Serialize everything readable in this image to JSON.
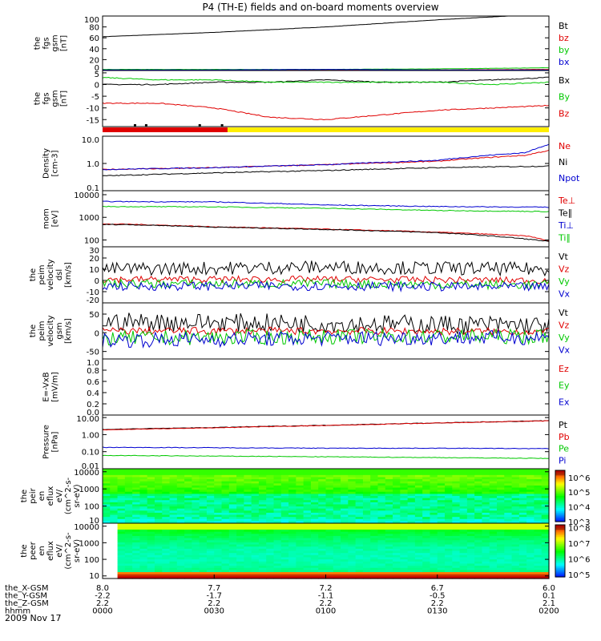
{
  "title": "P4 (TH-E) fields and on-board moments overview",
  "date": "2009 Nov 17",
  "colors": {
    "black": "#000000",
    "red": "#e00000",
    "green": "#00c800",
    "blue": "#0000d0"
  },
  "chart_data": [
    {
      "id": "p1",
      "type": "line",
      "ylabel": [
        "the",
        "fgs",
        "gsm",
        "[nT]"
      ],
      "ylim": [
        0,
        100
      ],
      "yticks": [
        "100",
        "80",
        "60",
        "40",
        "20",
        "0"
      ],
      "ytick_values": [
        100,
        80,
        60,
        40,
        20,
        0
      ],
      "series": [
        {
          "name": "Bt",
          "color": "#000000",
          "x": [
            0,
            0.5,
            1,
            1.5,
            2
          ],
          "y": [
            62,
            70,
            80,
            93,
            104
          ]
        },
        {
          "name": "bz",
          "color": "#e00000",
          "x": [
            0,
            0.5,
            1,
            1.5,
            2
          ],
          "y": [
            1,
            1,
            1,
            1,
            2
          ]
        },
        {
          "name": "by",
          "color": "#00c800",
          "x": [
            0,
            0.5,
            1,
            1.5,
            2
          ],
          "y": [
            2,
            2,
            2,
            3,
            5
          ]
        },
        {
          "name": "bx",
          "color": "#0000d0",
          "x": [
            0,
            0.5,
            1,
            1.5,
            2
          ],
          "y": [
            1,
            1,
            2,
            1,
            1
          ]
        }
      ]
    },
    {
      "id": "p2",
      "type": "line",
      "ylabel": [
        "the",
        "fgs",
        "gsm",
        "[nT]"
      ],
      "ylim": [
        -18,
        6
      ],
      "yticks": [
        "5",
        "0",
        "-5",
        "-10",
        "-15"
      ],
      "ytick_values": [
        5,
        0,
        -5,
        -10,
        -15
      ],
      "series": [
        {
          "name": "Bx",
          "color": "#000000",
          "x": [
            0,
            0.25,
            0.5,
            0.75,
            1,
            1.25,
            1.5,
            1.75,
            2
          ],
          "y": [
            0,
            0,
            1,
            1,
            2,
            1,
            1,
            2,
            3
          ]
        },
        {
          "name": "By",
          "color": "#00c800",
          "x": [
            0,
            0.25,
            0.5,
            0.75,
            1,
            1.25,
            1.5,
            1.75,
            2
          ],
          "y": [
            3,
            2,
            2,
            1,
            1,
            1,
            1,
            0,
            1
          ]
        },
        {
          "name": "Bz",
          "color": "#e00000",
          "x": [
            0,
            0.25,
            0.5,
            0.75,
            1,
            1.25,
            1.5,
            1.75,
            2
          ],
          "y": [
            -8,
            -8,
            -10,
            -14,
            -15,
            -13,
            -11,
            -10,
            -9
          ]
        }
      ]
    },
    {
      "id": "p3",
      "type": "line",
      "scale": "log",
      "ylabel": [
        "Density",
        "[cm-3]"
      ],
      "ylim": [
        0.1,
        10
      ],
      "yticks": [
        "10.0",
        "1.0",
        "0.1"
      ],
      "ytick_values": [
        10,
        1,
        0.1
      ],
      "series": [
        {
          "name": "Ne",
          "color": "#e00000",
          "x": [
            0,
            0.5,
            1,
            1.5,
            1.9,
            2
          ],
          "y": [
            0.6,
            0.7,
            0.9,
            1.2,
            2.0,
            3.0
          ]
        },
        {
          "name": "Ni",
          "color": "#000000",
          "x": [
            0,
            0.5,
            1,
            1.5,
            2
          ],
          "y": [
            0.35,
            0.45,
            0.55,
            0.7,
            0.8
          ]
        },
        {
          "name": "Npot",
          "color": "#0000d0",
          "x": [
            0,
            0.5,
            1,
            1.5,
            1.9,
            2
          ],
          "y": [
            0.6,
            0.7,
            0.9,
            1.3,
            2.5,
            5.0
          ]
        }
      ]
    },
    {
      "id": "p4",
      "type": "line",
      "scale": "log",
      "ylabel": [
        "mom",
        "[eV]"
      ],
      "ylim": [
        50,
        15000
      ],
      "yticks": [
        "10000",
        "1000",
        "100"
      ],
      "ytick_values": [
        10000,
        1000,
        100
      ],
      "series": [
        {
          "name": "Te⊥",
          "color": "#e00000",
          "x": [
            0.1,
            0.5,
            1,
            1.5,
            1.9,
            2
          ],
          "y": [
            500,
            380,
            300,
            220,
            150,
            90
          ]
        },
        {
          "name": "Te∥",
          "color": "#000000",
          "x": [
            0.1,
            0.5,
            1,
            1.5,
            2
          ],
          "y": [
            480,
            370,
            290,
            210,
            85
          ]
        },
        {
          "name": "Ti⊥",
          "color": "#0000d0",
          "x": [
            0,
            0.5,
            1,
            1.5,
            2
          ],
          "y": [
            5000,
            4800,
            3500,
            3000,
            2800
          ]
        },
        {
          "name": "Ti∥",
          "color": "#00c800",
          "x": [
            0,
            0.5,
            1,
            1.5,
            2
          ],
          "y": [
            3000,
            2900,
            2500,
            2000,
            1800
          ]
        }
      ]
    },
    {
      "id": "p5",
      "type": "line",
      "ylabel": [
        "the",
        "peim",
        "velocity",
        "dsl",
        "[km/s]"
      ],
      "ylim": [
        -20,
        30
      ],
      "yticks": [
        "30",
        "20",
        "10",
        "0",
        "-10",
        "-20"
      ],
      "ytick_values": [
        30,
        20,
        10,
        0,
        -10,
        -20
      ],
      "series": [
        {
          "name": "Vt",
          "color": "#000000",
          "x": [
            0,
            1,
            2
          ],
          "y": [
            10,
            12,
            10
          ]
        },
        {
          "name": "Vz",
          "color": "#e00000",
          "x": [
            0,
            1,
            2
          ],
          "y": [
            1,
            1,
            0
          ]
        },
        {
          "name": "Vy",
          "color": "#00c800",
          "x": [
            0,
            1,
            2
          ],
          "y": [
            -3,
            -3,
            -4
          ]
        },
        {
          "name": "Vx",
          "color": "#0000d0",
          "x": [
            0,
            1,
            2
          ],
          "y": [
            -5,
            -5,
            -6
          ]
        }
      ]
    },
    {
      "id": "p6",
      "type": "line",
      "ylabel": [
        "the",
        "peim",
        "velocity",
        "gsm",
        "[km/s]"
      ],
      "ylim": [
        -70,
        80
      ],
      "yticks": [
        "50",
        "0",
        "-50"
      ],
      "ytick_values": [
        50,
        0,
        -50
      ],
      "series": [
        {
          "name": "Vt",
          "color": "#000000",
          "x": [
            0,
            1,
            2
          ],
          "y": [
            30,
            25,
            20
          ]
        },
        {
          "name": "Vz",
          "color": "#e00000",
          "x": [
            0,
            1,
            2
          ],
          "y": [
            5,
            5,
            3
          ]
        },
        {
          "name": "Vy",
          "color": "#00c800",
          "x": [
            0,
            1,
            2
          ],
          "y": [
            -15,
            -10,
            -10
          ]
        },
        {
          "name": "Vx",
          "color": "#0000d0",
          "x": [
            0,
            1,
            2
          ],
          "y": [
            -20,
            -15,
            -12
          ]
        }
      ]
    },
    {
      "id": "p7",
      "type": "line",
      "ylabel": [
        "E=-VxB",
        "[mV/m]"
      ],
      "ylim": [
        0,
        1
      ],
      "yticks": [
        "1.0",
        "0.8",
        "0.6",
        "0.4",
        "0.2",
        "0.0"
      ],
      "ytick_values": [
        1,
        0.8,
        0.6,
        0.4,
        0.2,
        0
      ],
      "series": [
        {
          "name": "Ez",
          "color": "#e00000",
          "x": [],
          "y": []
        },
        {
          "name": "Ey",
          "color": "#00c800",
          "x": [],
          "y": []
        },
        {
          "name": "Ex",
          "color": "#0000d0",
          "x": [],
          "y": []
        }
      ]
    },
    {
      "id": "p8",
      "type": "line",
      "scale": "log",
      "ylabel": [
        "Pressure",
        "[nPa]"
      ],
      "ylim": [
        0.01,
        14
      ],
      "yticks": [
        "10.00",
        "1.00",
        "0.10",
        "0.01"
      ],
      "ytick_values": [
        10,
        1,
        0.1,
        0.01
      ],
      "series": [
        {
          "name": "Pt",
          "color": "#000000",
          "x": [
            0,
            0.5,
            1,
            1.5,
            2
          ],
          "y": [
            2.0,
            2.6,
            3.5,
            4.8,
            6.5
          ]
        },
        {
          "name": "Pb",
          "color": "#e00000",
          "x": [
            0,
            0.5,
            1,
            1.5,
            2
          ],
          "y": [
            1.9,
            2.5,
            3.4,
            4.7,
            6.4
          ]
        },
        {
          "name": "Pe",
          "color": "#00c800",
          "x": [
            0,
            0.5,
            1,
            1.5,
            2
          ],
          "y": [
            0.06,
            0.055,
            0.05,
            0.045,
            0.04
          ]
        },
        {
          "name": "Pi",
          "color": "#0000d0",
          "x": [
            0,
            0.5,
            1,
            1.5,
            2
          ],
          "y": [
            0.18,
            0.17,
            0.16,
            0.16,
            0.15
          ]
        }
      ]
    },
    {
      "id": "p9",
      "type": "heatmap",
      "scale": "log",
      "ylabel": [
        "the",
        "peir",
        "en",
        "eflux",
        "eV/",
        "(cm^2-s-",
        "sr-eV)"
      ],
      "ylim": [
        10,
        15000
      ],
      "yticks": [
        "10000",
        "1000",
        "100",
        "10"
      ],
      "ytick_values": [
        10000,
        1000,
        100,
        10
      ],
      "colorbar_ticks": [
        "10^6",
        "10^5",
        "10^4",
        "10^3"
      ],
      "colorbar_range": [
        1000,
        3000000
      ]
    },
    {
      "id": "p10",
      "type": "heatmap",
      "scale": "log",
      "ylabel": [
        "the",
        "peer",
        "en",
        "eflux",
        "eV/",
        "(cm^2-s-",
        "sr-eV)"
      ],
      "ylim": [
        7,
        15000
      ],
      "yticks": [
        "10000",
        "1000",
        "100",
        "10"
      ],
      "ytick_values": [
        10000,
        1000,
        100,
        10
      ],
      "colorbar_ticks": [
        "10^8",
        "10^7",
        "10^6",
        "10^5"
      ],
      "colorbar_range": [
        70000,
        150000000
      ]
    }
  ],
  "x_axis": {
    "row_labels": [
      "the_X-GSM",
      "the_Y-GSM",
      "the_Z-GSM",
      "hhmm"
    ],
    "ticks": [
      {
        "x": 0,
        "vals": [
          "8.0",
          "-2.2",
          "2.2",
          "0000"
        ]
      },
      {
        "x": 0.5,
        "vals": [
          "7.7",
          "-1.7",
          "2.2",
          "0030"
        ]
      },
      {
        "x": 1,
        "vals": [
          "7.2",
          "-1.1",
          "2.2",
          "0100"
        ]
      },
      {
        "x": 1.5,
        "vals": [
          "6.7",
          "-0.5",
          "2.2",
          "0130"
        ]
      },
      {
        "x": 2,
        "vals": [
          "6.0",
          "0.1",
          "2.1",
          "0200"
        ]
      }
    ]
  }
}
